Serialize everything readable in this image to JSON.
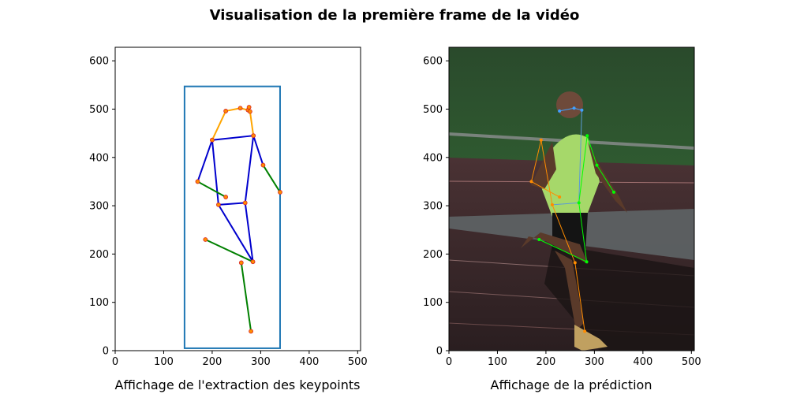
{
  "figure": {
    "title": "Visualisation de la première frame de la vidéo"
  },
  "chart_data": [
    {
      "type": "scatter",
      "title": "",
      "xlabel": "Affichage de l'extraction des keypoints",
      "ylabel": "",
      "xlim": [
        0,
        506
      ],
      "ylim": [
        0,
        628
      ],
      "xticks": [
        0,
        100,
        200,
        300,
        400,
        500
      ],
      "yticks": [
        0,
        100,
        200,
        300,
        400,
        500,
        600
      ],
      "bbox_rect": [
        143,
        5,
        340,
        547
      ],
      "bbox_color": "#1f77b4",
      "keypoints": [
        {
          "x": 228,
          "y": 496
        },
        {
          "x": 258,
          "y": 502
        },
        {
          "x": 274,
          "y": 498
        },
        {
          "x": 276,
          "y": 504
        },
        {
          "x": 278,
          "y": 495
        },
        {
          "x": 200,
          "y": 436
        },
        {
          "x": 285,
          "y": 445
        },
        {
          "x": 170,
          "y": 350
        },
        {
          "x": 305,
          "y": 384
        },
        {
          "x": 228,
          "y": 318
        },
        {
          "x": 340,
          "y": 328
        },
        {
          "x": 213,
          "y": 302
        },
        {
          "x": 268,
          "y": 306
        },
        {
          "x": 186,
          "y": 230
        },
        {
          "x": 284,
          "y": 184
        },
        {
          "x": 260,
          "y": 182
        },
        {
          "x": 280,
          "y": 40
        }
      ],
      "keypoint_color": "#d62728",
      "skeleton": [
        {
          "color": "#ffa500",
          "points": [
            [
              200,
              436
            ],
            [
              228,
              496
            ],
            [
              258,
              502
            ],
            [
              274,
              498
            ],
            [
              276,
              504
            ]
          ]
        },
        {
          "color": "#ffa500",
          "points": [
            [
              276,
              504
            ],
            [
              278,
              495
            ],
            [
              285,
              445
            ]
          ]
        },
        {
          "color": "#0000cd",
          "points": [
            [
              200,
              436
            ],
            [
              285,
              445
            ],
            [
              268,
              306
            ],
            [
              213,
              302
            ],
            [
              200,
              436
            ]
          ]
        },
        {
          "color": "#0000cd",
          "points": [
            [
              200,
              436
            ],
            [
              170,
              350
            ]
          ]
        },
        {
          "color": "#0000cd",
          "points": [
            [
              285,
              445
            ],
            [
              305,
              384
            ]
          ]
        },
        {
          "color": "#0000cd",
          "points": [
            [
              213,
              302
            ],
            [
              284,
              184
            ],
            [
              268,
              306
            ]
          ]
        },
        {
          "color": "#008000",
          "points": [
            [
              170,
              350
            ],
            [
              228,
              318
            ]
          ]
        },
        {
          "color": "#008000",
          "points": [
            [
              305,
              384
            ],
            [
              340,
              328
            ]
          ]
        },
        {
          "color": "#008000",
          "points": [
            [
              186,
              230
            ],
            [
              284,
              184
            ]
          ]
        },
        {
          "color": "#008000",
          "points": [
            [
              260,
              182
            ],
            [
              280,
              40
            ]
          ]
        }
      ]
    },
    {
      "type": "scatter",
      "title": "",
      "xlabel": "Affichage de la prédiction",
      "ylabel": "",
      "xlim": [
        0,
        506
      ],
      "ylim": [
        0,
        628
      ],
      "xticks": [
        0,
        100,
        200,
        300,
        400,
        500
      ],
      "yticks": [
        0,
        100,
        200,
        300,
        400,
        500,
        600
      ],
      "background": "photo",
      "keypoints": [
        {
          "x": 228,
          "y": 496,
          "color": "#3fa0ff"
        },
        {
          "x": 258,
          "y": 502,
          "color": "#3fa0ff"
        },
        {
          "x": 274,
          "y": 498,
          "color": "#3fa0ff"
        },
        {
          "x": 190,
          "y": 436,
          "color": "#ff8c00"
        },
        {
          "x": 285,
          "y": 445,
          "color": "#00ff00"
        },
        {
          "x": 170,
          "y": 350,
          "color": "#ff8c00"
        },
        {
          "x": 305,
          "y": 384,
          "color": "#00ff00"
        },
        {
          "x": 228,
          "y": 318,
          "color": "#ff8c00"
        },
        {
          "x": 340,
          "y": 328,
          "color": "#00ff00"
        },
        {
          "x": 213,
          "y": 302,
          "color": "#ff8c00"
        },
        {
          "x": 268,
          "y": 306,
          "color": "#00ff00"
        },
        {
          "x": 186,
          "y": 230,
          "color": "#00ff00"
        },
        {
          "x": 284,
          "y": 184,
          "color": "#00ff00"
        },
        {
          "x": 260,
          "y": 182,
          "color": "#ff8c00"
        },
        {
          "x": 280,
          "y": 40,
          "color": "#ff8c00"
        }
      ],
      "skeleton": [
        {
          "color": "#3fa0ff",
          "points": [
            [
              228,
              496
            ],
            [
              258,
              502
            ],
            [
              274,
              498
            ]
          ]
        },
        {
          "color": "#5b9bd5",
          "points": [
            [
              274,
              498
            ],
            [
              268,
              306
            ]
          ]
        },
        {
          "color": "#ff8c00",
          "points": [
            [
              190,
              436
            ],
            [
              170,
              350
            ],
            [
              228,
              318
            ]
          ]
        },
        {
          "color": "#ff8c00",
          "points": [
            [
              213,
              302
            ],
            [
              260,
              182
            ],
            [
              280,
              40
            ]
          ]
        },
        {
          "color": "#ff8c00",
          "points": [
            [
              190,
              436
            ],
            [
              213,
              302
            ]
          ]
        },
        {
          "color": "#00ff00",
          "points": [
            [
              285,
              445
            ],
            [
              305,
              384
            ],
            [
              340,
              328
            ]
          ]
        },
        {
          "color": "#00ff00",
          "points": [
            [
              285,
              445
            ],
            [
              268,
              306
            ]
          ]
        },
        {
          "color": "#00ff00",
          "points": [
            [
              268,
              306
            ],
            [
              284,
              184
            ],
            [
              186,
              230
            ]
          ]
        },
        {
          "color": "#5b9bd5",
          "points": [
            [
              213,
              302
            ],
            [
              268,
              306
            ]
          ]
        }
      ]
    }
  ]
}
